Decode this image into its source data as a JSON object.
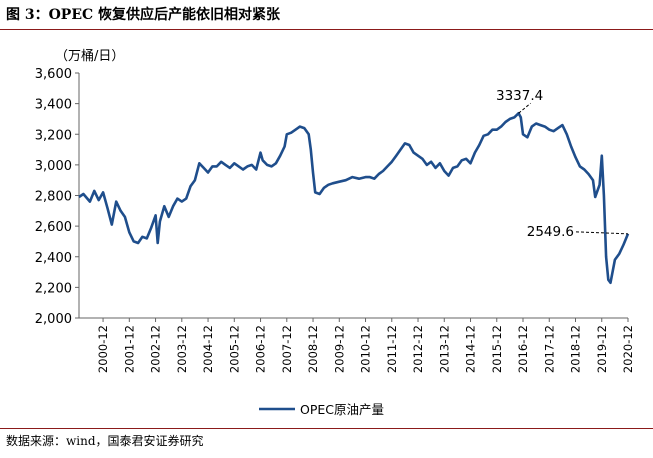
{
  "header": {
    "title": "图 3：OPEC 恢复供应后产能依旧相对紧张"
  },
  "footer": {
    "source": "数据来源：wind，国泰君安证券研究"
  },
  "chart_data": {
    "type": "line",
    "title": "",
    "ylabel": "（万桶/日）",
    "xlabel": "",
    "ylim": [
      2000,
      3600
    ],
    "yticks": [
      2000,
      2200,
      2400,
      2600,
      2800,
      3000,
      3200,
      3400,
      3600
    ],
    "ytick_labels": [
      "2,000",
      "2,200",
      "2,400",
      "2,600",
      "2,800",
      "3,000",
      "3,200",
      "3,400",
      "3,600"
    ],
    "xticks": [
      "2000-12",
      "2001-12",
      "2002-12",
      "2003-12",
      "2004-12",
      "2005-12",
      "2006-12",
      "2007-12",
      "2008-12",
      "2009-12",
      "2010-12",
      "2011-12",
      "2012-12",
      "2013-12",
      "2014-12",
      "2015-12",
      "2016-12",
      "2017-12",
      "2018-12",
      "2019-12",
      "2020-12"
    ],
    "grid": false,
    "legend_position": "bottom",
    "color": "#1f4e8c",
    "series": [
      {
        "name": "OPEC原油产量",
        "points": [
          [
            "2000-01",
            2790
          ],
          [
            "2000-03",
            2810
          ],
          [
            "2000-06",
            2760
          ],
          [
            "2000-08",
            2830
          ],
          [
            "2000-10",
            2770
          ],
          [
            "2000-12",
            2820
          ],
          [
            "2001-02",
            2720
          ],
          [
            "2001-04",
            2610
          ],
          [
            "2001-06",
            2760
          ],
          [
            "2001-08",
            2700
          ],
          [
            "2001-10",
            2660
          ],
          [
            "2001-12",
            2560
          ],
          [
            "2002-02",
            2500
          ],
          [
            "2002-04",
            2490
          ],
          [
            "2002-06",
            2530
          ],
          [
            "2002-08",
            2520
          ],
          [
            "2002-10",
            2590
          ],
          [
            "2002-12",
            2670
          ],
          [
            "2003-01",
            2490
          ],
          [
            "2003-02",
            2630
          ],
          [
            "2003-04",
            2730
          ],
          [
            "2003-06",
            2660
          ],
          [
            "2003-08",
            2730
          ],
          [
            "2003-10",
            2780
          ],
          [
            "2003-12",
            2760
          ],
          [
            "2004-02",
            2780
          ],
          [
            "2004-04",
            2860
          ],
          [
            "2004-06",
            2900
          ],
          [
            "2004-08",
            3010
          ],
          [
            "2004-10",
            2980
          ],
          [
            "2004-12",
            2950
          ],
          [
            "2005-02",
            2990
          ],
          [
            "2005-04",
            2990
          ],
          [
            "2005-06",
            3020
          ],
          [
            "2005-08",
            3000
          ],
          [
            "2005-10",
            2980
          ],
          [
            "2005-12",
            3010
          ],
          [
            "2006-02",
            2990
          ],
          [
            "2006-04",
            2970
          ],
          [
            "2006-06",
            2990
          ],
          [
            "2006-08",
            3000
          ],
          [
            "2006-10",
            2970
          ],
          [
            "2006-12",
            3080
          ],
          [
            "2007-01",
            3030
          ],
          [
            "2007-03",
            3000
          ],
          [
            "2007-05",
            2990
          ],
          [
            "2007-07",
            3010
          ],
          [
            "2007-09",
            3060
          ],
          [
            "2007-11",
            3120
          ],
          [
            "2007-12",
            3200
          ],
          [
            "2008-02",
            3210
          ],
          [
            "2008-04",
            3230
          ],
          [
            "2008-06",
            3250
          ],
          [
            "2008-08",
            3240
          ],
          [
            "2008-10",
            3200
          ],
          [
            "2008-11",
            3100
          ],
          [
            "2008-12",
            2950
          ],
          [
            "2009-01",
            2820
          ],
          [
            "2009-03",
            2810
          ],
          [
            "2009-05",
            2850
          ],
          [
            "2009-07",
            2870
          ],
          [
            "2009-09",
            2880
          ],
          [
            "2009-12",
            2890
          ],
          [
            "2010-03",
            2900
          ],
          [
            "2010-06",
            2920
          ],
          [
            "2010-09",
            2910
          ],
          [
            "2010-12",
            2920
          ],
          [
            "2011-02",
            2920
          ],
          [
            "2011-04",
            2910
          ],
          [
            "2011-06",
            2940
          ],
          [
            "2011-08",
            2960
          ],
          [
            "2011-10",
            2990
          ],
          [
            "2011-12",
            3020
          ],
          [
            "2012-02",
            3060
          ],
          [
            "2012-04",
            3100
          ],
          [
            "2012-06",
            3140
          ],
          [
            "2012-08",
            3130
          ],
          [
            "2012-10",
            3080
          ],
          [
            "2012-12",
            3060
          ],
          [
            "2013-02",
            3040
          ],
          [
            "2013-04",
            3000
          ],
          [
            "2013-06",
            3020
          ],
          [
            "2013-08",
            2980
          ],
          [
            "2013-10",
            3010
          ],
          [
            "2013-12",
            2960
          ],
          [
            "2014-02",
            2930
          ],
          [
            "2014-04",
            2980
          ],
          [
            "2014-06",
            2990
          ],
          [
            "2014-08",
            3030
          ],
          [
            "2014-10",
            3040
          ],
          [
            "2014-12",
            3010
          ],
          [
            "2015-02",
            3080
          ],
          [
            "2015-04",
            3130
          ],
          [
            "2015-06",
            3190
          ],
          [
            "2015-08",
            3200
          ],
          [
            "2015-10",
            3230
          ],
          [
            "2015-12",
            3230
          ],
          [
            "2016-02",
            3250
          ],
          [
            "2016-04",
            3280
          ],
          [
            "2016-06",
            3300
          ],
          [
            "2016-08",
            3310
          ],
          [
            "2016-10",
            3337.4
          ],
          [
            "2016-11",
            3310
          ],
          [
            "2016-12",
            3200
          ],
          [
            "2017-02",
            3180
          ],
          [
            "2017-04",
            3250
          ],
          [
            "2017-06",
            3270
          ],
          [
            "2017-08",
            3260
          ],
          [
            "2017-10",
            3250
          ],
          [
            "2017-12",
            3230
          ],
          [
            "2018-02",
            3220
          ],
          [
            "2018-04",
            3240
          ],
          [
            "2018-06",
            3260
          ],
          [
            "2018-08",
            3200
          ],
          [
            "2018-10",
            3120
          ],
          [
            "2018-12",
            3050
          ],
          [
            "2019-02",
            2990
          ],
          [
            "2019-04",
            2970
          ],
          [
            "2019-06",
            2940
          ],
          [
            "2019-08",
            2900
          ],
          [
            "2019-09",
            2790
          ],
          [
            "2019-11",
            2870
          ],
          [
            "2019-12",
            3060
          ],
          [
            "2020-01",
            2800
          ],
          [
            "2020-02",
            2400
          ],
          [
            "2020-03",
            2250
          ],
          [
            "2020-04",
            2230
          ],
          [
            "2020-06",
            2380
          ],
          [
            "2020-08",
            2420
          ],
          [
            "2020-10",
            2480
          ],
          [
            "2020-12",
            2549.6
          ]
        ]
      }
    ],
    "annotations": [
      {
        "text": "3337.4",
        "x": "2016-10",
        "y": 3337.4
      },
      {
        "text": "2549.6",
        "x": "2020-12",
        "y": 2549.6
      }
    ]
  }
}
